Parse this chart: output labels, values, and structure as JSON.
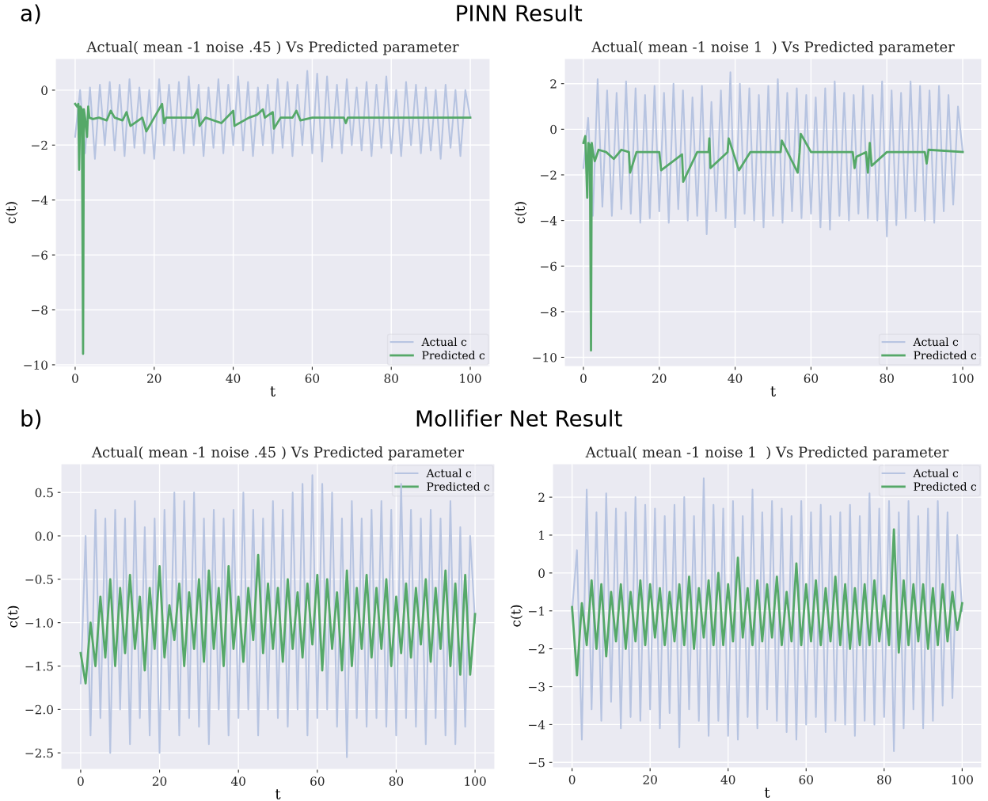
{
  "chart_data": [
    {
      "type": "line",
      "title": "Actual( mean -1 noise .45 ) Vs Predicted parameter",
      "xlabel": "t",
      "ylabel": "c(t)",
      "annotations": [
        "a)",
        "PINN Result"
      ],
      "xlim": [
        -5,
        105
      ],
      "ylim": [
        -10.06,
        1.15
      ],
      "xticks": [
        0,
        20,
        40,
        60,
        80,
        100
      ],
      "yticks": [
        -10,
        -8,
        -6,
        -4,
        -2,
        0
      ],
      "grid": true,
      "legend": "lower right",
      "x": [
        0,
        1.25,
        2.5,
        3.75,
        5,
        6.25,
        7.5,
        8.75,
        10,
        11.25,
        12.5,
        13.75,
        15,
        16.25,
        17.5,
        18.75,
        20,
        21.25,
        22.5,
        23.75,
        25,
        26.25,
        27.5,
        28.75,
        30,
        31.25,
        32.5,
        33.75,
        35,
        36.25,
        37.5,
        38.75,
        40,
        41.25,
        42.5,
        43.75,
        45,
        46.25,
        47.5,
        48.75,
        50,
        51.25,
        52.5,
        53.75,
        55,
        56.25,
        57.5,
        58.75,
        60,
        61.25,
        62.5,
        63.75,
        65,
        66.25,
        67.5,
        68.75,
        70,
        71.25,
        72.5,
        73.75,
        75,
        76.25,
        77.5,
        78.75,
        80,
        81.25,
        82.5,
        83.75,
        85,
        86.25,
        87.5,
        88.75,
        90,
        91.25,
        92.5,
        93.75,
        95,
        96.25,
        97.5,
        98.75,
        100
      ],
      "series": [
        {
          "name": "Actual c",
          "color": "#b7c4e1",
          "values": [
            -1.7,
            0.0,
            -2.3,
            0.1,
            -2.5,
            0.2,
            -2.0,
            0.3,
            -2.2,
            0.2,
            -2.4,
            0.4,
            -2.1,
            0.1,
            -2.3,
            0.0,
            -2.5,
            0.4,
            -2.0,
            0.2,
            -2.2,
            0.3,
            -2.3,
            0.5,
            -2.0,
            0.2,
            -2.4,
            0.1,
            -2.1,
            0.4,
            -2.3,
            0.2,
            -2.0,
            0.5,
            -2.2,
            0.3,
            -2.4,
            0.1,
            -2.0,
            0.2,
            -2.3,
            0.4,
            -2.1,
            0.3,
            -2.4,
            0.2,
            -2.0,
            0.7,
            -2.3,
            0.6,
            -2.6,
            0.5,
            -2.1,
            0.2,
            -2.3,
            0.4,
            -2.0,
            0.1,
            -2.2,
            0.3,
            -2.4,
            0.2,
            -2.1,
            0.5,
            -2.3,
            0.0,
            -2.4,
            0.3,
            -2.0,
            0.2,
            -2.3,
            0.1,
            -2.2,
            0.0,
            -2.5,
            0.2,
            -2.1,
            0.0,
            -2.4,
            0.0,
            -1.0
          ]
        },
        {
          "name": "Predicted c",
          "color": "#55a868",
          "x": [
            0,
            0.5,
            0.8,
            1.0,
            1.3,
            1.7,
            2.0,
            2.2,
            2.5,
            3.0,
            3.3,
            3.6,
            4.5,
            6,
            8,
            9,
            10,
            12,
            13,
            14,
            17,
            18,
            20,
            22,
            22.5,
            23,
            26,
            30,
            31,
            31.5,
            33,
            37,
            40,
            40.3,
            44,
            46,
            47.5,
            48,
            50,
            50.3,
            52,
            55,
            56,
            57,
            60,
            68,
            68.5,
            69,
            80,
            100
          ],
          "values": [
            -0.5,
            -0.6,
            -0.5,
            -2.9,
            -0.6,
            -0.7,
            -9.6,
            -0.7,
            -1.0,
            -1.7,
            -0.6,
            -1.0,
            -1.05,
            -1.0,
            -1.1,
            -0.75,
            -1.0,
            -1.1,
            -0.8,
            -1.3,
            -1.0,
            -1.5,
            -1.0,
            -0.5,
            -1.2,
            -1.0,
            -1.0,
            -1.0,
            -0.7,
            -1.3,
            -1.0,
            -1.2,
            -0.75,
            -1.3,
            -1.0,
            -0.9,
            -0.7,
            -1.0,
            -0.8,
            -1.4,
            -1.0,
            -1.0,
            -0.75,
            -1.1,
            -1.0,
            -1.0,
            -1.2,
            -1.0,
            -1.0,
            -1.0
          ]
        }
      ]
    },
    {
      "type": "line",
      "title": "Actual( mean -1 noise 1  ) Vs Predicted parameter",
      "xlabel": "t",
      "ylabel": "c(t)",
      "xlim": [
        -5,
        105
      ],
      "ylim": [
        -10.4,
        3.1
      ],
      "xticks": [
        0,
        20,
        40,
        60,
        80,
        100
      ],
      "yticks": [
        -10,
        -8,
        -6,
        -4,
        -2,
        0,
        2
      ],
      "grid": true,
      "legend": "lower right",
      "x": [
        0,
        1.25,
        2.5,
        3.75,
        5,
        6.25,
        7.5,
        8.75,
        10,
        11.25,
        12.5,
        13.75,
        15,
        16.25,
        17.5,
        18.75,
        20,
        21.25,
        22.5,
        23.75,
        25,
        26.25,
        27.5,
        28.75,
        30,
        31.25,
        32.5,
        33.75,
        35,
        36.25,
        37.5,
        38.75,
        40,
        41.25,
        42.5,
        43.75,
        45,
        46.25,
        47.5,
        48.75,
        50,
        51.25,
        52.5,
        53.75,
        55,
        56.25,
        57.5,
        58.75,
        60,
        61.25,
        62.5,
        63.75,
        65,
        66.25,
        67.5,
        68.75,
        70,
        71.25,
        72.5,
        73.75,
        75,
        76.25,
        77.5,
        78.75,
        80,
        81.25,
        82.5,
        83.75,
        85,
        86.25,
        87.5,
        88.75,
        90,
        91.25,
        92.5,
        93.75,
        95,
        96.25,
        97.5,
        98.75,
        100
      ],
      "series": [
        {
          "name": "Actual c",
          "color": "#b7c4e1",
          "values": [
            -1.7,
            0.5,
            -3.8,
            2.2,
            -3.4,
            1.7,
            -3.8,
            1.6,
            -3.5,
            2.1,
            -3.7,
            1.8,
            -4.1,
            1.5,
            -3.9,
            1.9,
            -3.6,
            1.6,
            -4.1,
            2.0,
            -3.5,
            1.7,
            -4.0,
            1.4,
            -3.8,
            1.9,
            -4.6,
            1.2,
            -3.6,
            1.7,
            -3.9,
            2.5,
            -4.3,
            2.0,
            -3.7,
            1.8,
            -4.0,
            1.5,
            -4.3,
            1.9,
            -3.8,
            2.2,
            -4.1,
            1.6,
            -3.6,
            1.8,
            -3.9,
            1.5,
            -3.7,
            1.4,
            -4.3,
            1.8,
            -4.4,
            2.1,
            -3.8,
            1.6,
            -4.0,
            1.5,
            -3.7,
            1.9,
            -3.9,
            1.5,
            -4.0,
            2.1,
            -4.7,
            1.7,
            -4.2,
            1.6,
            -3.9,
            2.1,
            -3.6,
            1.9,
            -4.0,
            1.7,
            -4.1,
            1.9,
            -3.6,
            1.5,
            -3.3,
            1.0,
            -1.0
          ]
        },
        {
          "name": "Predicted c",
          "color": "#55a868",
          "x": [
            0,
            0.5,
            1.0,
            1.3,
            1.7,
            2.0,
            2.2,
            2.5,
            3,
            4,
            6,
            8,
            10,
            12,
            12.3,
            14,
            20,
            20.5,
            26,
            26.3,
            30,
            33,
            33.2,
            33.5,
            38,
            38.3,
            41,
            44,
            52,
            52.3,
            56.5,
            57,
            57.3,
            60,
            71,
            71.5,
            72,
            74.5,
            75,
            75.5,
            76,
            80,
            90,
            90.5,
            91,
            100
          ],
          "values": [
            -0.6,
            -0.3,
            -3.0,
            -0.6,
            -0.7,
            -9.7,
            -0.6,
            -1.0,
            -1.4,
            -0.9,
            -1.0,
            -1.3,
            -0.9,
            -1.0,
            -1.9,
            -1.0,
            -1.0,
            -1.8,
            -1.1,
            -2.3,
            -1.0,
            -1.0,
            -0.4,
            -1.7,
            -1.0,
            -0.4,
            -1.8,
            -1.0,
            -1.0,
            -0.5,
            -1.9,
            -1.0,
            -0.2,
            -1.0,
            -1.0,
            -1.7,
            -1.2,
            -1.0,
            -1.9,
            -0.6,
            -1.6,
            -1.0,
            -1.0,
            -1.5,
            -0.9,
            -1.0
          ]
        }
      ]
    },
    {
      "type": "line",
      "title": "Actual( mean -1 noise .45 ) Vs Predicted parameter",
      "xlabel": "t",
      "ylabel": "c(t)",
      "annotations": [
        "b)",
        "Mollifier Net Result"
      ],
      "xlim": [
        -5,
        105
      ],
      "ylim": [
        -2.69,
        0.83
      ],
      "xticks": [
        0,
        20,
        40,
        60,
        80,
        100
      ],
      "yticks": [
        {
          "value": -2.5,
          "label": "−2.5"
        },
        {
          "value": -2.0,
          "label": "−2.0"
        },
        {
          "value": -1.5,
          "label": "−1.5"
        },
        {
          "value": -1.0,
          "label": "−1.0"
        },
        {
          "value": -0.5,
          "label": "−0.5"
        },
        {
          "value": 0.0,
          "label": "0.0"
        },
        {
          "value": 0.5,
          "label": "0.5"
        }
      ],
      "grid": true,
      "legend": "upper right",
      "x": [
        0,
        1.25,
        2.5,
        3.75,
        5,
        6.25,
        7.5,
        8.75,
        10,
        11.25,
        12.5,
        13.75,
        15,
        16.25,
        17.5,
        18.75,
        20,
        21.25,
        22.5,
        23.75,
        25,
        26.25,
        27.5,
        28.75,
        30,
        31.25,
        32.5,
        33.75,
        35,
        36.25,
        37.5,
        38.75,
        40,
        41.25,
        42.5,
        43.75,
        45,
        46.25,
        47.5,
        48.75,
        50,
        51.25,
        52.5,
        53.75,
        55,
        56.25,
        57.5,
        58.75,
        60,
        61.25,
        62.5,
        63.75,
        65,
        66.25,
        67.5,
        68.75,
        70,
        71.25,
        72.5,
        73.75,
        75,
        76.25,
        77.5,
        78.75,
        80,
        81.25,
        82.5,
        83.75,
        85,
        86.25,
        87.5,
        88.75,
        90,
        91.25,
        92.5,
        93.75,
        95,
        96.25,
        97.5,
        98.75,
        100
      ],
      "series": [
        {
          "name": "Actual c",
          "color": "#b7c4e1",
          "values": [
            -1.7,
            0.0,
            -2.3,
            0.3,
            -2.1,
            0.2,
            -2.5,
            0.3,
            -2.0,
            0.2,
            -2.4,
            0.4,
            -2.1,
            0.1,
            -2.3,
            0.2,
            -2.5,
            0.3,
            -2.0,
            0.5,
            -2.3,
            0.4,
            -2.1,
            0.5,
            -2.2,
            0.2,
            -2.4,
            0.3,
            -2.0,
            0.2,
            -2.3,
            0.3,
            -2.1,
            0.5,
            -2.0,
            0.3,
            -2.3,
            0.2,
            -2.0,
            0.4,
            -2.1,
            0.3,
            -2.2,
            0.5,
            -2.0,
            0.6,
            -2.3,
            0.7,
            -2.1,
            0.6,
            -2.0,
            0.5,
            -2.2,
            0.2,
            -2.55,
            0.4,
            -2.1,
            0.2,
            -2.2,
            0.3,
            -2.1,
            0.4,
            -2.2,
            0.3,
            -2.3,
            0.6,
            -2.1,
            0.3,
            -2.2,
            0.2,
            -2.4,
            0.3,
            -2.1,
            0.2,
            -2.3,
            0.4,
            -2.4,
            0.1,
            -2.2,
            0.0,
            -1.0
          ]
        },
        {
          "name": "Predicted c",
          "color": "#55a868",
          "values": [
            -1.35,
            -1.7,
            -1.0,
            -1.5,
            -0.7,
            -1.4,
            -0.5,
            -1.5,
            -0.6,
            -1.35,
            -0.45,
            -1.3,
            -0.7,
            -1.55,
            -0.6,
            -1.3,
            -0.35,
            -1.4,
            -0.8,
            -1.2,
            -0.55,
            -1.5,
            -0.65,
            -1.3,
            -0.5,
            -1.45,
            -0.4,
            -1.3,
            -0.6,
            -1.5,
            -0.35,
            -1.3,
            -0.7,
            -1.45,
            -0.6,
            -1.2,
            -0.22,
            -1.35,
            -0.55,
            -1.3,
            -0.6,
            -1.45,
            -0.5,
            -1.3,
            -0.65,
            -1.4,
            -0.55,
            -1.25,
            -0.45,
            -1.55,
            -0.5,
            -1.3,
            -0.65,
            -1.55,
            -0.4,
            -1.5,
            -0.6,
            -1.3,
            -0.45,
            -1.4,
            -0.6,
            -1.3,
            -0.5,
            -1.5,
            -0.7,
            -1.35,
            -0.55,
            -1.4,
            -0.6,
            -1.25,
            -0.5,
            -1.45,
            -0.6,
            -1.3,
            -0.4,
            -1.5,
            -0.55,
            -1.6,
            -0.45,
            -1.6,
            -0.9
          ]
        }
      ]
    },
    {
      "type": "line",
      "title": "Actual( mean -1 noise 1  ) Vs Predicted parameter",
      "xlabel": "t",
      "ylabel": "c(t)",
      "xlim": [
        -5,
        105
      ],
      "ylim": [
        -5.14,
        2.88
      ],
      "xticks": [
        0,
        20,
        40,
        60,
        80,
        100
      ],
      "yticks": [
        -5,
        -4,
        -3,
        -2,
        -1,
        0,
        1,
        2
      ],
      "grid": true,
      "legend": "upper right",
      "x": [
        0,
        1.25,
        2.5,
        3.75,
        5,
        6.25,
        7.5,
        8.75,
        10,
        11.25,
        12.5,
        13.75,
        15,
        16.25,
        17.5,
        18.75,
        20,
        21.25,
        22.5,
        23.75,
        25,
        26.25,
        27.5,
        28.75,
        30,
        31.25,
        32.5,
        33.75,
        35,
        36.25,
        37.5,
        38.75,
        40,
        41.25,
        42.5,
        43.75,
        45,
        46.25,
        47.5,
        48.75,
        50,
        51.25,
        52.5,
        53.75,
        55,
        56.25,
        57.5,
        58.75,
        60,
        61.25,
        62.5,
        63.75,
        65,
        66.25,
        67.5,
        68.75,
        70,
        71.25,
        72.5,
        73.75,
        75,
        76.25,
        77.5,
        78.75,
        80,
        81.25,
        82.5,
        83.75,
        85,
        86.25,
        87.5,
        88.75,
        90,
        91.25,
        92.5,
        93.75,
        95,
        96.25,
        97.5,
        98.75,
        100
      ],
      "series": [
        {
          "name": "Actual c",
          "color": "#b7c4e1",
          "values": [
            -1.0,
            0.6,
            -4.4,
            2.2,
            -3.6,
            1.6,
            -3.9,
            2.1,
            -3.4,
            1.7,
            -4.1,
            1.6,
            -3.8,
            2.0,
            -3.9,
            1.8,
            -3.6,
            1.7,
            -4.1,
            1.5,
            -3.7,
            1.8,
            -4.6,
            2.0,
            -3.6,
            1.5,
            -3.9,
            2.5,
            -4.3,
            1.8,
            -3.9,
            1.7,
            -4.3,
            1.9,
            -4.4,
            1.5,
            -3.8,
            2.2,
            -4.1,
            1.6,
            -3.6,
            1.9,
            -3.9,
            1.7,
            -4.2,
            1.5,
            -4.4,
            1.9,
            -4.0,
            1.6,
            -3.8,
            1.8,
            -4.2,
            1.5,
            -3.9,
            1.6,
            -4.0,
            1.8,
            -4.3,
            1.5,
            -3.9,
            2.1,
            -4.0,
            1.7,
            -3.8,
            1.9,
            -4.7,
            1.6,
            -4.1,
            1.9,
            -3.6,
            1.5,
            -4.1,
            1.7,
            -3.9,
            1.9,
            -3.5,
            1.6,
            -3.3,
            1.0,
            -1.0
          ]
        },
        {
          "name": "Predicted c",
          "color": "#55a868",
          "values": [
            -0.9,
            -2.7,
            -0.8,
            -1.9,
            -0.2,
            -2.0,
            -0.3,
            -2.2,
            -0.5,
            -1.8,
            -0.3,
            -2.0,
            -0.5,
            -1.8,
            -0.2,
            -1.9,
            -0.3,
            -1.7,
            -0.4,
            -1.9,
            -0.5,
            -1.8,
            -0.3,
            -1.9,
            -0.1,
            -2.0,
            -0.4,
            -1.7,
            -0.2,
            -1.9,
            0.0,
            -1.9,
            -0.3,
            -1.8,
            0.4,
            -1.7,
            -0.4,
            -1.9,
            -0.2,
            -1.8,
            -0.3,
            -1.7,
            -0.1,
            -1.9,
            -0.5,
            -1.8,
            0.25,
            -1.9,
            -0.3,
            -1.8,
            -0.2,
            -1.9,
            -0.4,
            -1.8,
            -0.1,
            -1.9,
            -0.3,
            -2.0,
            -0.4,
            -1.9,
            -0.3,
            -1.9,
            -0.2,
            -1.8,
            -0.6,
            -1.9,
            1.15,
            -2.1,
            -0.2,
            -1.9,
            -0.3,
            -1.8,
            -0.3,
            -2.0,
            -0.4,
            -1.9,
            -0.3,
            -1.8,
            -0.5,
            -1.5,
            -0.8
          ]
        }
      ]
    }
  ]
}
